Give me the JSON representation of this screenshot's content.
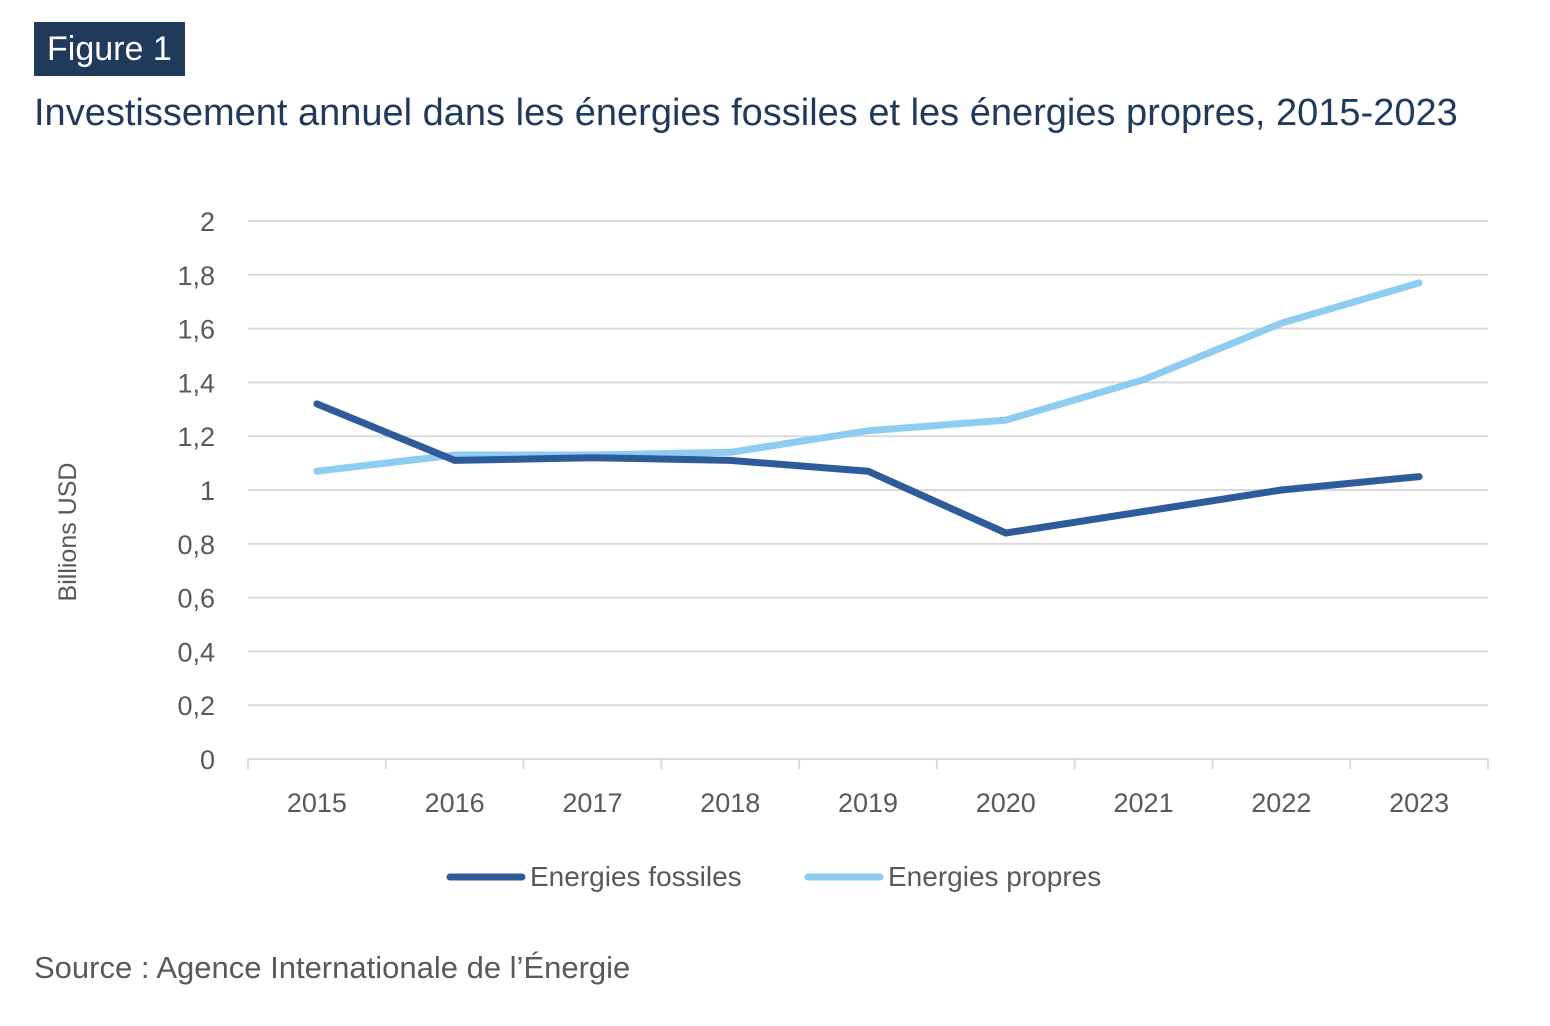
{
  "figure": {
    "label": "Figure 1",
    "title": "Investissement annuel dans les énergies fossiles et les énergies propres, 2015-2023",
    "source": "Source : Agence Internationale de l’Énergie"
  },
  "colors": {
    "header_bg": "#1f3a5b",
    "title_text": "#1f3a5b",
    "fossiles": "#2e5c9a",
    "propres": "#8ecdf1",
    "grid": "#d9d9d9",
    "tick_text": "#595959",
    "source_text": "#595959"
  },
  "chart_data": {
    "type": "line",
    "title": "Investissement annuel dans les énergies fossiles et les énergies propres, 2015-2023",
    "xlabel": "",
    "ylabel": "Billions USD",
    "categories": [
      "2015",
      "2016",
      "2017",
      "2018",
      "2019",
      "2020",
      "2021",
      "2022",
      "2023"
    ],
    "ylim": [
      0,
      2
    ],
    "yticks": [
      0,
      0.2,
      0.4,
      0.6,
      0.8,
      1,
      1.2,
      1.4,
      1.6,
      1.8,
      2
    ],
    "ytick_labels": [
      "0",
      "0,2",
      "0,4",
      "0,6",
      "0,8",
      "1",
      "1,2",
      "1,4",
      "1,6",
      "1,8",
      "2"
    ],
    "grid": true,
    "legend_position": "bottom",
    "series": [
      {
        "name": "Energies fossiles",
        "color_key": "fossiles",
        "values": [
          1.32,
          1.11,
          1.12,
          1.11,
          1.07,
          0.84,
          0.92,
          1.0,
          1.05
        ]
      },
      {
        "name": "Energies propres",
        "color_key": "propres",
        "values": [
          1.07,
          1.13,
          1.13,
          1.14,
          1.22,
          1.26,
          1.41,
          1.62,
          1.77
        ]
      }
    ]
  }
}
